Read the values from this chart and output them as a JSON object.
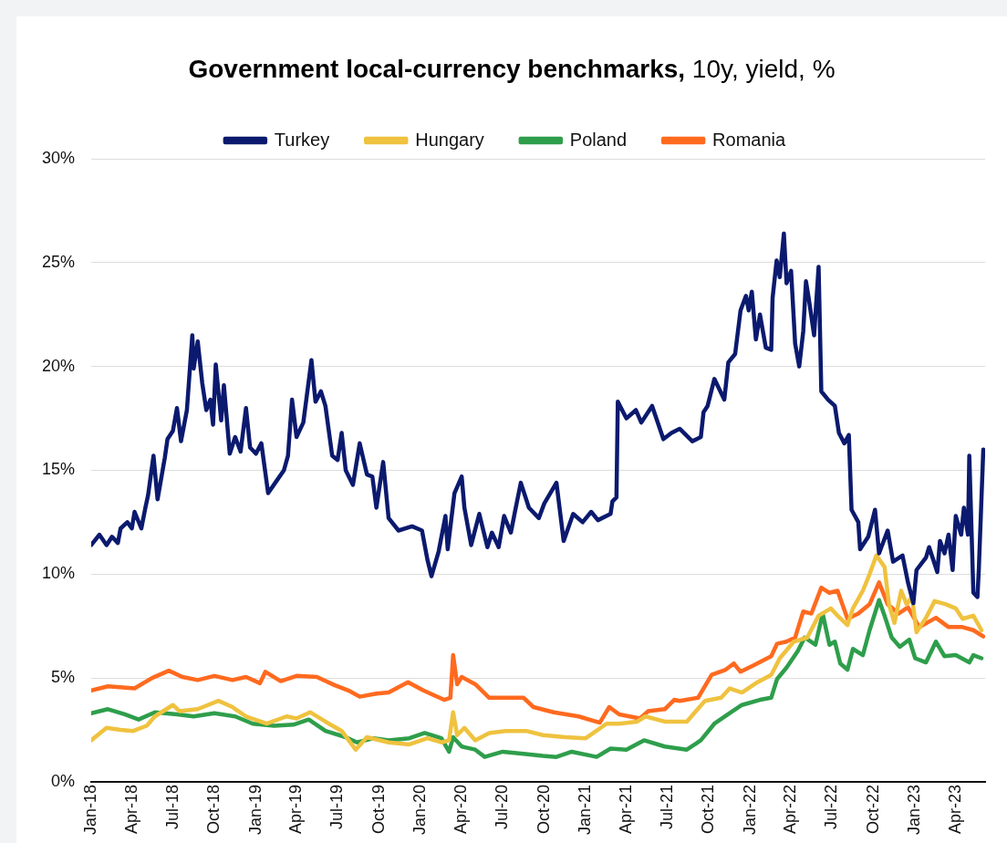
{
  "chart_data": {
    "type": "line",
    "title": "Government local-currency benchmarks, 10y, yield, %",
    "legend": "top",
    "grid": "y",
    "marker": "none",
    "line_style": "solid",
    "xlim": [
      "2018-01-01",
      "2023-06-05"
    ],
    "xticks": [
      {
        "value": "2018-01-01",
        "label": "Jan-18"
      },
      {
        "value": "2018-04-01",
        "label": "Apr-18"
      },
      {
        "value": "2018-07-01",
        "label": "Jul-18"
      },
      {
        "value": "2018-10-01",
        "label": "Oct-18"
      },
      {
        "value": "2019-01-01",
        "label": "Jan-19"
      },
      {
        "value": "2019-04-01",
        "label": "Apr-19"
      },
      {
        "value": "2019-07-01",
        "label": "Jul-19"
      },
      {
        "value": "2019-10-01",
        "label": "Oct-19"
      },
      {
        "value": "2020-01-01",
        "label": "Jan-20"
      },
      {
        "value": "2020-04-01",
        "label": "Apr-20"
      },
      {
        "value": "2020-07-01",
        "label": "Jul-20"
      },
      {
        "value": "2020-10-01",
        "label": "Oct-20"
      },
      {
        "value": "2021-01-01",
        "label": "Jan-21"
      },
      {
        "value": "2021-04-01",
        "label": "Apr-21"
      },
      {
        "value": "2021-07-01",
        "label": "Jul-21"
      },
      {
        "value": "2021-10-01",
        "label": "Oct-21"
      },
      {
        "value": "2022-01-01",
        "label": "Jan-22"
      },
      {
        "value": "2022-04-01",
        "label": "Apr-22"
      },
      {
        "value": "2022-07-01",
        "label": "Jul-22"
      },
      {
        "value": "2022-10-01",
        "label": "Oct-22"
      },
      {
        "value": "2023-01-01",
        "label": "Jan-23"
      },
      {
        "value": "2023-04-01",
        "label": "Apr-23"
      }
    ],
    "ylim": [
      0,
      30
    ],
    "yticks": [
      {
        "value": 0,
        "label": "0%"
      },
      {
        "value": 5,
        "label": "5%"
      },
      {
        "value": 10,
        "label": "10%"
      },
      {
        "value": 15,
        "label": "15%"
      },
      {
        "value": 20,
        "label": "20%"
      },
      {
        "value": 25,
        "label": "25%"
      },
      {
        "value": 30,
        "label": "30%"
      }
    ],
    "series": [
      {
        "name": "Turkey",
        "color": "#0b1a6e",
        "x": [
          "2018-01-01",
          "2018-01-19",
          "2018-02-04",
          "2018-02-16",
          "2018-03-01",
          "2018-03-07",
          "2018-03-22",
          "2018-04-01",
          "2018-04-07",
          "2018-04-22",
          "2018-05-01",
          "2018-05-07",
          "2018-05-19",
          "2018-05-28",
          "2018-06-13",
          "2018-06-19",
          "2018-07-01",
          "2018-07-10",
          "2018-07-19",
          "2018-08-01",
          "2018-08-13",
          "2018-08-16",
          "2018-08-25",
          "2018-09-04",
          "2018-09-13",
          "2018-09-22",
          "2018-09-28",
          "2018-10-04",
          "2018-10-16",
          "2018-10-22",
          "2018-11-04",
          "2018-11-16",
          "2018-11-28",
          "2018-12-10",
          "2018-12-19",
          "2019-01-01",
          "2019-01-13",
          "2019-01-28",
          "2019-02-16",
          "2019-03-04",
          "2019-03-13",
          "2019-03-22",
          "2019-04-01",
          "2019-04-16",
          "2019-04-25",
          "2019-05-04",
          "2019-05-13",
          "2019-05-25",
          "2019-06-04",
          "2019-06-19",
          "2019-07-01",
          "2019-07-10",
          "2019-07-19",
          "2019-08-04",
          "2019-08-19",
          "2019-09-04",
          "2019-09-16",
          "2019-09-25",
          "2019-10-10",
          "2019-10-22",
          "2019-11-13",
          "2019-12-13",
          "2020-01-04",
          "2020-01-16",
          "2020-01-25",
          "2020-02-10",
          "2020-02-25",
          "2020-03-01",
          "2020-03-16",
          "2020-04-01",
          "2020-04-07",
          "2020-04-22",
          "2020-05-10",
          "2020-05-28",
          "2020-06-07",
          "2020-06-22",
          "2020-07-04",
          "2020-07-19",
          "2020-07-28",
          "2020-08-10",
          "2020-08-28",
          "2020-09-19",
          "2020-10-01",
          "2020-10-28",
          "2020-11-13",
          "2020-12-04",
          "2020-12-25",
          "2021-01-13",
          "2021-01-28",
          "2021-02-25",
          "2021-03-01",
          "2021-03-10",
          "2021-03-13",
          "2021-04-01",
          "2021-04-22",
          "2021-05-04",
          "2021-05-28",
          "2021-06-22",
          "2021-07-10",
          "2021-07-28",
          "2021-08-25",
          "2021-09-13",
          "2021-09-19",
          "2021-09-28",
          "2021-10-13",
          "2021-11-04",
          "2021-11-13",
          "2021-11-28",
          "2021-12-10",
          "2021-12-22",
          "2021-12-28",
          "2022-01-04",
          "2022-01-13",
          "2022-01-22",
          "2022-02-04",
          "2022-02-16",
          "2022-02-19",
          "2022-02-28",
          "2022-03-07",
          "2022-03-16",
          "2022-03-22",
          "2022-04-01",
          "2022-04-10",
          "2022-04-19",
          "2022-04-28",
          "2022-05-04",
          "2022-05-10",
          "2022-05-22",
          "2022-06-01",
          "2022-06-07",
          "2022-06-22",
          "2022-07-07",
          "2022-07-16",
          "2022-07-28",
          "2022-08-07",
          "2022-08-13",
          "2022-08-28",
          "2022-09-01",
          "2022-09-19",
          "2022-10-04",
          "2022-10-13",
          "2022-11-01",
          "2022-11-13",
          "2022-12-04",
          "2022-12-16",
          "2022-12-28",
          "2023-01-04",
          "2023-01-25",
          "2023-02-01",
          "2023-02-19",
          "2023-02-25",
          "2023-03-07",
          "2023-03-16",
          "2023-03-25",
          "2023-04-01",
          "2023-04-13",
          "2023-04-19",
          "2023-04-28",
          "2023-05-01",
          "2023-05-10",
          "2023-05-19",
          "2023-05-22",
          "2023-06-01"
        ],
        "values": [
          11.4,
          11.9,
          11.4,
          11.8,
          11.5,
          12.2,
          12.5,
          12.2,
          13.0,
          12.2,
          13.2,
          13.8,
          15.7,
          13.6,
          15.6,
          16.5,
          16.9,
          18.0,
          16.4,
          17.9,
          21.5,
          19.9,
          21.2,
          19.2,
          17.9,
          18.4,
          17.2,
          20.1,
          17.4,
          19.1,
          15.8,
          16.6,
          15.9,
          18.0,
          16.1,
          15.8,
          16.3,
          13.9,
          14.5,
          15.0,
          15.7,
          18.4,
          16.6,
          17.3,
          18.8,
          20.3,
          18.3,
          18.8,
          18.1,
          15.7,
          15.5,
          16.8,
          15.0,
          14.3,
          16.3,
          14.8,
          14.7,
          13.2,
          15.4,
          12.7,
          12.1,
          12.3,
          12.1,
          10.7,
          9.9,
          11.1,
          12.8,
          11.2,
          13.9,
          14.7,
          13.2,
          11.4,
          12.9,
          11.3,
          12.0,
          11.3,
          12.8,
          12.0,
          13.0,
          14.4,
          13.2,
          12.7,
          13.4,
          14.4,
          11.6,
          12.9,
          12.5,
          13.0,
          12.6,
          12.9,
          13.5,
          13.7,
          18.3,
          17.5,
          17.9,
          17.3,
          18.1,
          16.5,
          16.8,
          17.0,
          16.4,
          16.6,
          17.8,
          18.1,
          19.4,
          18.4,
          20.2,
          20.6,
          22.7,
          23.4,
          22.7,
          23.6,
          21.3,
          22.5,
          20.9,
          20.8,
          23.3,
          25.1,
          24.3,
          26.4,
          24.0,
          24.6,
          21.1,
          20.0,
          21.7,
          24.1,
          23.3,
          21.5,
          24.8,
          18.8,
          18.4,
          18.1,
          16.8,
          16.3,
          16.7,
          13.1,
          12.5,
          11.2,
          11.8,
          13.1,
          11.0,
          12.1,
          10.6,
          10.9,
          9.6,
          8.6,
          10.2,
          10.8,
          11.3,
          10.1,
          11.6,
          11.0,
          11.9,
          10.2,
          12.8,
          11.9,
          13.2,
          11.9,
          15.7,
          9.1,
          8.9,
          10.2,
          16.0
        ]
      },
      {
        "name": "Hungary",
        "color": "#efc23f",
        "x": [
          "2018-01-01",
          "2018-02-04",
          "2018-03-07",
          "2018-04-04",
          "2018-05-04",
          "2018-05-22",
          "2018-07-01",
          "2018-07-16",
          "2018-08-25",
          "2018-10-10",
          "2018-11-10",
          "2018-12-10",
          "2019-01-25",
          "2019-03-10",
          "2019-04-01",
          "2019-05-01",
          "2019-06-04",
          "2019-07-10",
          "2019-08-10",
          "2019-09-04",
          "2019-10-22",
          "2019-12-07",
          "2020-01-16",
          "2020-02-16",
          "2020-03-04",
          "2020-03-13",
          "2020-03-22",
          "2020-04-07",
          "2020-05-01",
          "2020-06-01",
          "2020-07-07",
          "2020-08-22",
          "2020-09-28",
          "2020-11-16",
          "2021-01-01",
          "2021-02-16",
          "2021-03-16",
          "2021-04-25",
          "2021-05-13",
          "2021-06-25",
          "2021-08-13",
          "2021-09-22",
          "2021-10-28",
          "2021-11-16",
          "2021-12-13",
          "2022-01-13",
          "2022-02-16",
          "2022-03-07",
          "2022-04-07",
          "2022-05-07",
          "2022-06-01",
          "2022-06-28",
          "2022-07-13",
          "2022-08-04",
          "2022-08-16",
          "2022-09-07",
          "2022-09-22",
          "2022-10-07",
          "2022-10-25",
          "2022-11-04",
          "2022-11-16",
          "2022-12-01",
          "2022-12-13",
          "2022-12-25",
          "2023-01-04",
          "2023-01-25",
          "2023-02-13",
          "2023-03-10",
          "2023-04-01",
          "2023-04-16",
          "2023-05-10",
          "2023-05-28"
        ],
        "values": [
          2.0,
          2.6,
          2.5,
          2.45,
          2.7,
          3.15,
          3.7,
          3.4,
          3.5,
          3.9,
          3.6,
          3.15,
          2.8,
          3.15,
          3.05,
          3.35,
          2.9,
          2.45,
          1.55,
          2.15,
          1.9,
          1.8,
          2.1,
          1.9,
          2.0,
          3.35,
          2.25,
          2.6,
          2.0,
          2.35,
          2.45,
          2.45,
          2.25,
          2.15,
          2.1,
          2.8,
          2.8,
          2.9,
          3.15,
          2.9,
          2.9,
          3.9,
          4.05,
          4.5,
          4.3,
          4.75,
          5.15,
          5.95,
          6.75,
          6.95,
          8.0,
          8.35,
          8.0,
          7.55,
          8.35,
          9.2,
          10.0,
          10.9,
          10.35,
          8.55,
          7.65,
          9.2,
          8.55,
          8.9,
          7.2,
          7.9,
          8.7,
          8.55,
          8.35,
          7.85,
          8.0,
          7.3
        ]
      },
      {
        "name": "Poland",
        "color": "#2e9e4b",
        "x": [
          "2018-01-01",
          "2018-02-07",
          "2018-03-16",
          "2018-04-16",
          "2018-05-22",
          "2018-07-10",
          "2018-08-16",
          "2018-10-01",
          "2018-11-16",
          "2018-12-25",
          "2019-02-10",
          "2019-03-25",
          "2019-04-28",
          "2019-06-04",
          "2019-07-19",
          "2019-08-13",
          "2019-09-19",
          "2019-10-22",
          "2019-12-07",
          "2020-01-10",
          "2020-02-16",
          "2020-03-04",
          "2020-03-13",
          "2020-04-01",
          "2020-05-01",
          "2020-05-22",
          "2020-07-01",
          "2020-08-16",
          "2020-09-28",
          "2020-10-28",
          "2020-12-01",
          "2021-01-25",
          "2021-02-25",
          "2021-04-01",
          "2021-05-10",
          "2021-06-25",
          "2021-08-13",
          "2021-09-13",
          "2021-10-13",
          "2021-11-19",
          "2021-12-13",
          "2022-01-22",
          "2022-02-16",
          "2022-03-01",
          "2022-03-22",
          "2022-04-16",
          "2022-05-01",
          "2022-05-25",
          "2022-06-10",
          "2022-06-25",
          "2022-07-07",
          "2022-07-19",
          "2022-08-04",
          "2022-08-16",
          "2022-09-07",
          "2022-09-22",
          "2022-10-13",
          "2022-10-25",
          "2022-11-10",
          "2022-11-28",
          "2022-12-19",
          "2023-01-01",
          "2023-01-25",
          "2023-02-16",
          "2023-03-07",
          "2023-04-01",
          "2023-05-01",
          "2023-05-10",
          "2023-05-28"
        ],
        "values": [
          3.3,
          3.5,
          3.25,
          3.0,
          3.35,
          3.25,
          3.15,
          3.3,
          3.15,
          2.8,
          2.7,
          2.75,
          3.0,
          2.45,
          2.15,
          1.9,
          2.1,
          2.0,
          2.1,
          2.35,
          2.1,
          1.45,
          2.15,
          1.7,
          1.55,
          1.2,
          1.45,
          1.35,
          1.25,
          1.2,
          1.45,
          1.2,
          1.6,
          1.55,
          2.0,
          1.7,
          1.55,
          2.0,
          2.8,
          3.35,
          3.7,
          3.95,
          4.05,
          4.95,
          5.5,
          6.3,
          6.95,
          6.6,
          8.1,
          6.6,
          6.75,
          5.7,
          5.4,
          6.4,
          6.1,
          7.3,
          8.75,
          8.0,
          6.95,
          6.5,
          6.85,
          5.95,
          5.75,
          6.75,
          6.05,
          6.1,
          5.75,
          6.1,
          5.95
        ]
      },
      {
        "name": "Romania",
        "color": "#ff6a1f",
        "x": [
          "2018-01-01",
          "2018-02-07",
          "2018-04-07",
          "2018-05-16",
          "2018-06-22",
          "2018-07-22",
          "2018-08-25",
          "2018-10-01",
          "2018-11-10",
          "2018-12-10",
          "2019-01-10",
          "2019-01-22",
          "2019-02-25",
          "2019-04-01",
          "2019-05-16",
          "2019-06-25",
          "2019-07-25",
          "2019-08-19",
          "2019-09-25",
          "2019-10-22",
          "2019-12-04",
          "2020-01-07",
          "2020-02-22",
          "2020-03-07",
          "2020-03-13",
          "2020-03-22",
          "2020-04-01",
          "2020-05-01",
          "2020-06-01",
          "2020-07-16",
          "2020-08-16",
          "2020-09-07",
          "2020-10-22",
          "2020-12-16",
          "2021-02-01",
          "2021-02-22",
          "2021-03-16",
          "2021-05-01",
          "2021-05-19",
          "2021-06-25",
          "2021-07-16",
          "2021-07-28",
          "2021-09-07",
          "2021-10-07",
          "2021-11-07",
          "2021-11-25",
          "2021-12-10",
          "2022-01-07",
          "2022-02-16",
          "2022-03-01",
          "2022-03-22",
          "2022-04-10",
          "2022-04-28",
          "2022-05-16",
          "2022-06-07",
          "2022-06-25",
          "2022-07-13",
          "2022-08-04",
          "2022-08-28",
          "2022-09-22",
          "2022-10-13",
          "2022-11-01",
          "2022-11-25",
          "2022-12-16",
          "2023-01-10",
          "2023-02-16",
          "2023-03-16",
          "2023-04-16",
          "2023-05-10",
          "2023-06-01"
        ],
        "values": [
          4.4,
          4.6,
          4.5,
          5.0,
          5.35,
          5.05,
          4.9,
          5.1,
          4.9,
          5.05,
          4.75,
          5.3,
          4.85,
          5.1,
          5.05,
          4.65,
          4.4,
          4.1,
          4.25,
          4.3,
          4.8,
          4.4,
          3.95,
          4.05,
          6.1,
          4.7,
          5.05,
          4.7,
          4.05,
          4.05,
          4.05,
          3.6,
          3.35,
          3.15,
          2.85,
          3.6,
          3.25,
          3.05,
          3.4,
          3.5,
          3.95,
          3.9,
          4.05,
          5.15,
          5.4,
          5.7,
          5.3,
          5.6,
          6.05,
          6.65,
          6.75,
          6.95,
          8.2,
          8.1,
          9.35,
          9.1,
          9.2,
          7.85,
          8.1,
          8.55,
          9.6,
          8.55,
          8.1,
          8.4,
          7.45,
          7.9,
          7.45,
          7.45,
          7.3,
          7.0
        ]
      }
    ]
  }
}
